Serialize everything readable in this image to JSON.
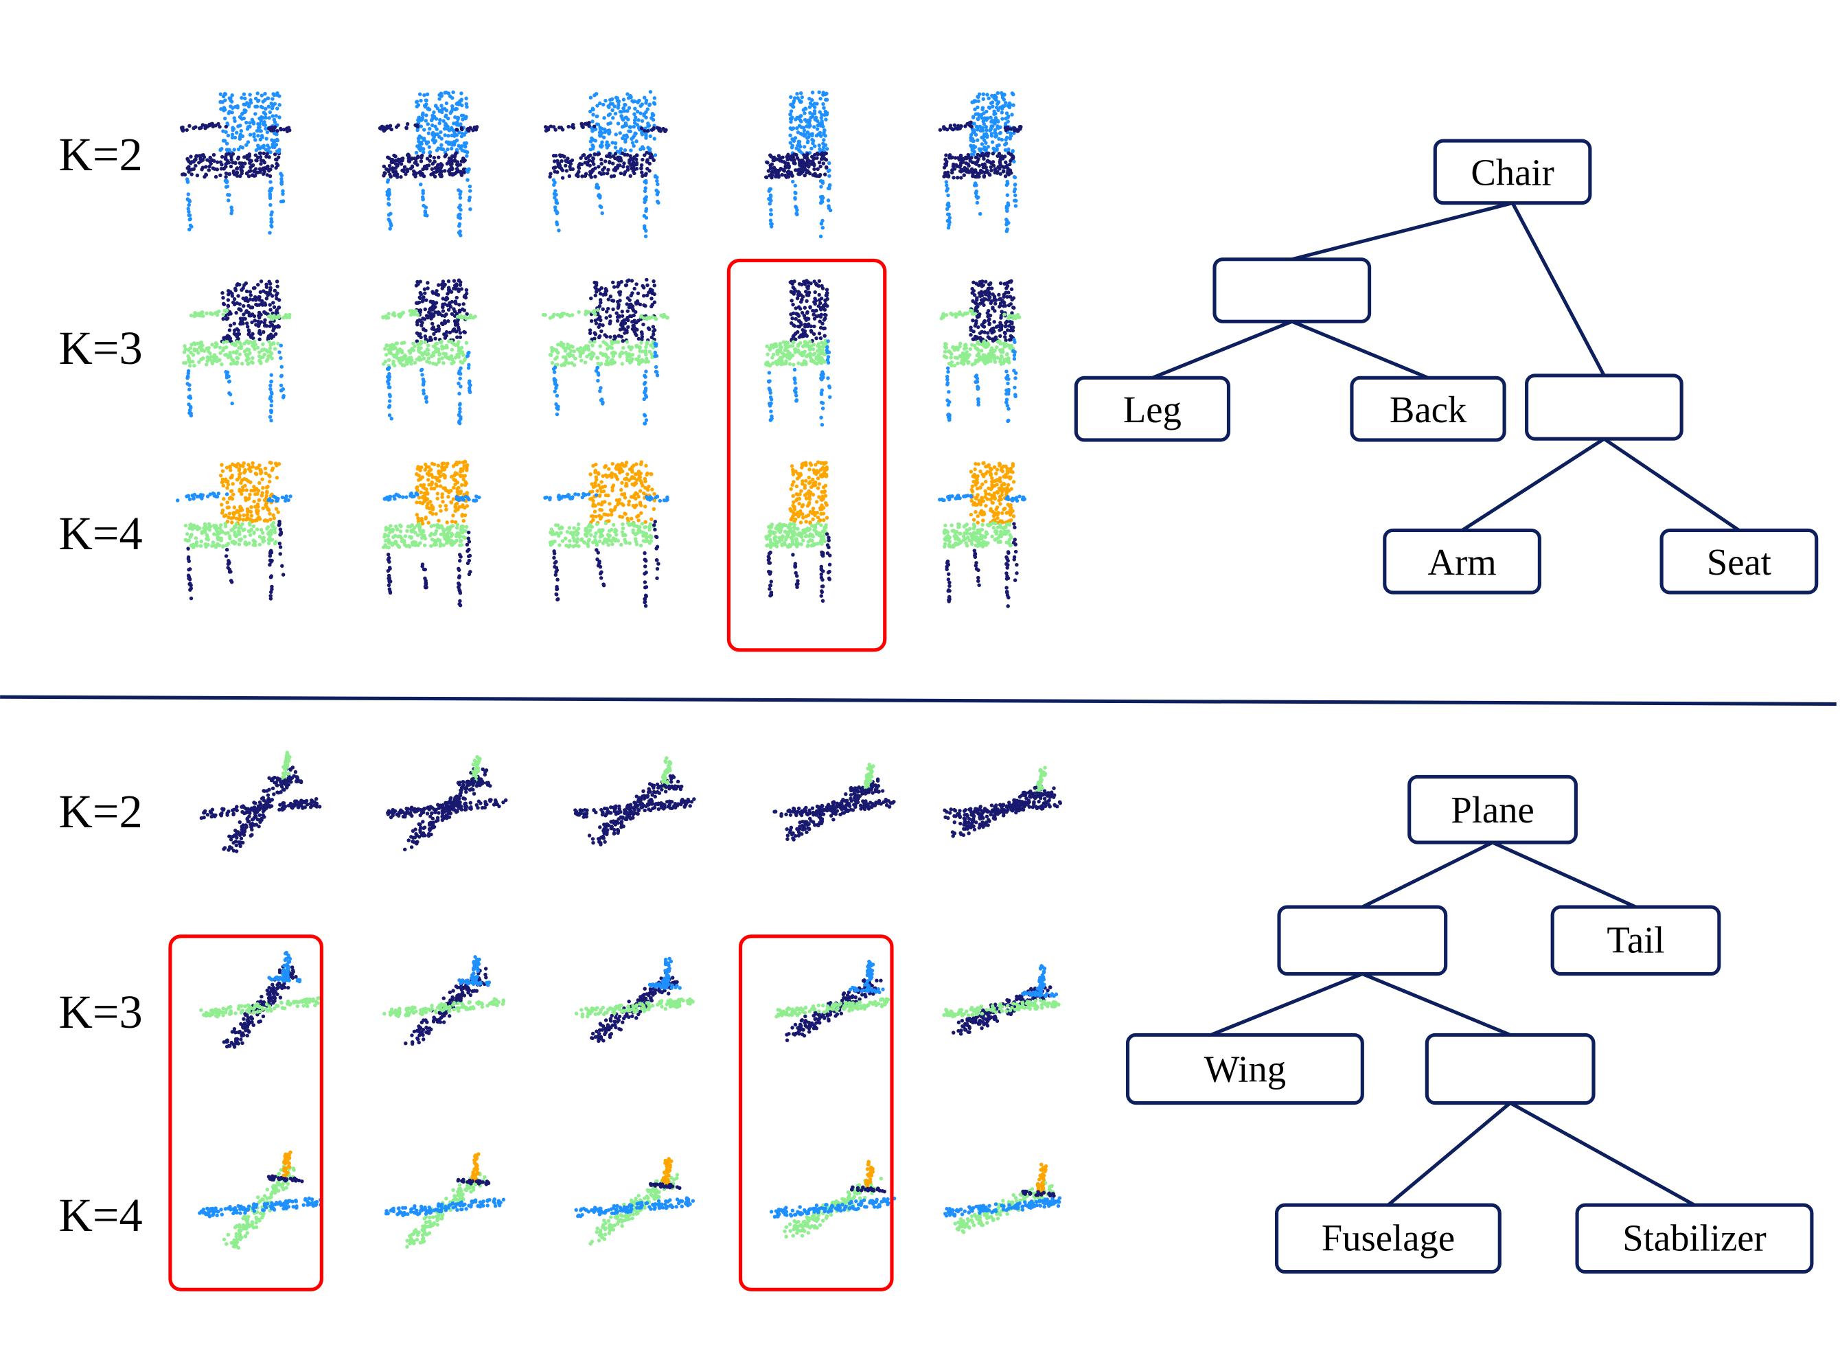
{
  "palette": {
    "navy": "#191970",
    "blue": "#1e90ff",
    "green": "#90ee90",
    "orange": "#ffa500",
    "highlight": "#ff0000",
    "tree": "#0d1f5c"
  },
  "chair_section": {
    "row_labels": [
      "K=2",
      "K=3",
      "K=4"
    ],
    "part_colors": {
      "K=2": {
        "back": "blue",
        "seat": "navy",
        "legs": "blue",
        "arms": "navy"
      },
      "K=3": {
        "back": "navy",
        "seat": "green",
        "legs": "blue",
        "arms": "green"
      },
      "K=4": {
        "back": "orange",
        "seat": "green",
        "legs": "navy",
        "arms": "blue"
      }
    },
    "highlighted_column": 4,
    "tree": {
      "root": "Chair",
      "nodes": [
        "Chair",
        "",
        "Leg",
        "Back",
        "",
        "Arm",
        "Seat"
      ]
    }
  },
  "plane_section": {
    "row_labels": [
      "K=2",
      "K=3",
      "K=4"
    ],
    "part_colors": {
      "K=2": {
        "fuselage": "navy",
        "wings": "navy",
        "tail": "green",
        "stab": "navy"
      },
      "K=3": {
        "fuselage": "navy",
        "wings": "green",
        "tail": "blue",
        "stab": "blue"
      },
      "K=4": {
        "fuselage": "green",
        "wings": "blue",
        "tail": "orange",
        "stab": "navy"
      }
    },
    "highlighted_columns": [
      1,
      4
    ],
    "tree": {
      "root": "Plane",
      "nodes": [
        "Plane",
        "",
        "Tail",
        "Wing",
        "",
        "Fuselage",
        "Stabilizer"
      ]
    }
  }
}
